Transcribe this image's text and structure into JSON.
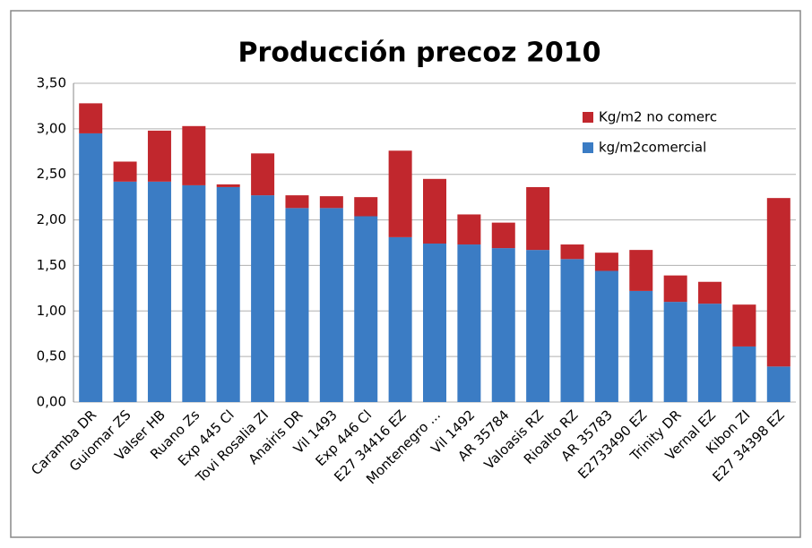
{
  "chart_data": {
    "type": "stacked_bar",
    "title": "Producción precoz 2010",
    "categories": [
      "Caramba DR",
      "Guiomar ZS",
      "Valser HB",
      "Ruano Zs",
      "Exp 445 Cl",
      "Tovi Rosalia ZI",
      "Anairis DR",
      "Vil 1493",
      "Exp 446 Cl",
      "E27 34416 EZ",
      "Montenegro ...",
      "Vil 1492",
      "AR 35784",
      "Valoasis RZ",
      "Rioalto RZ",
      "AR 35783",
      "E2733490 EZ",
      "Trinity DR",
      "Vernal EZ",
      "Kibon ZI",
      "E27 34398 EZ"
    ],
    "series": [
      {
        "name": "kg/m2comercial",
        "color": "#3b7cc4",
        "values": [
          2.95,
          2.42,
          2.42,
          2.38,
          2.36,
          2.27,
          2.13,
          2.13,
          2.04,
          1.81,
          1.74,
          1.73,
          1.69,
          1.67,
          1.57,
          1.44,
          1.22,
          1.1,
          1.08,
          0.61,
          0.39
        ]
      },
      {
        "name": "Kg/m2 no comerc",
        "color": "#c1272d",
        "values": [
          0.33,
          0.22,
          0.56,
          0.65,
          0.03,
          0.46,
          0.14,
          0.13,
          0.21,
          0.95,
          0.71,
          0.33,
          0.28,
          0.69,
          0.16,
          0.2,
          0.45,
          0.29,
          0.24,
          0.46,
          1.85
        ]
      }
    ],
    "ylim": [
      0,
      3.5
    ],
    "yticks": [
      {
        "value": 0,
        "label": "0,00"
      },
      {
        "value": 0.5,
        "label": "0,50"
      },
      {
        "value": 1,
        "label": "1,00"
      },
      {
        "value": 1.5,
        "label": "1,50"
      },
      {
        "value": 2,
        "label": "2,00"
      },
      {
        "value": 2.5,
        "label": "2,50"
      },
      {
        "value": 3,
        "label": "3,00"
      },
      {
        "value": 3.5,
        "label": "3,50"
      }
    ],
    "grid": true
  }
}
